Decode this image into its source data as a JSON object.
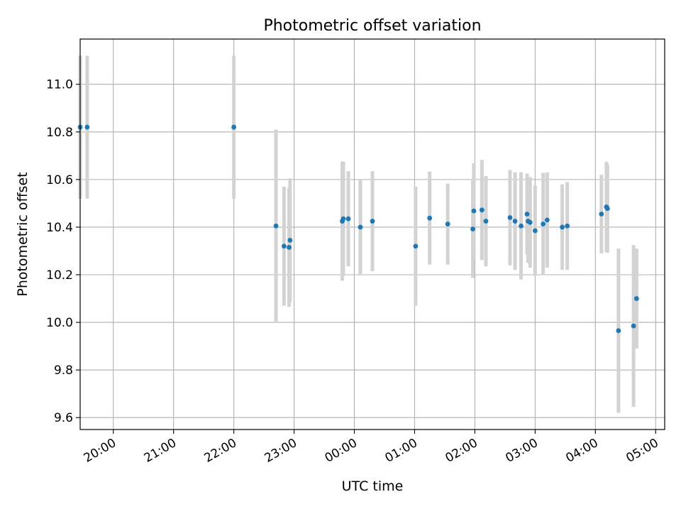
{
  "chart_data": {
    "type": "scatter",
    "title": "Photometric offset variation",
    "xlabel": "UTC time",
    "ylabel": "Photometric offset",
    "x_tick_labels": [
      "20:00",
      "21:00",
      "22:00",
      "23:00",
      "00:00",
      "01:00",
      "02:00",
      "03:00",
      "04:00",
      "05:00"
    ],
    "y_ticks": [
      9.6,
      9.8,
      10.0,
      10.2,
      10.4,
      10.6,
      10.8,
      11.0
    ],
    "xlim": [
      "19:27",
      "05:09"
    ],
    "ylim": [
      9.55,
      11.19
    ],
    "grid": true,
    "point_color": "#1f77b4",
    "errorbar_color": "#d3d3d3",
    "points": [
      {
        "time": "19:27",
        "value": 10.82,
        "error": 0.3
      },
      {
        "time": "19:34",
        "value": 10.82,
        "error": 0.3
      },
      {
        "time": "22:00",
        "value": 10.82,
        "error": 0.3
      },
      {
        "time": "22:42",
        "value": 10.405,
        "error": 0.405
      },
      {
        "time": "22:50",
        "value": 10.32,
        "error": 0.25
      },
      {
        "time": "22:55",
        "value": 10.315,
        "error": 0.25
      },
      {
        "time": "22:56",
        "value": 10.345,
        "error": 0.26
      },
      {
        "time": "23:48",
        "value": 10.425,
        "error": 0.25
      },
      {
        "time": "23:49",
        "value": 10.435,
        "error": 0.24
      },
      {
        "time": "23:54",
        "value": 10.435,
        "error": 0.2
      },
      {
        "time": "00:06",
        "value": 10.4,
        "error": 0.2
      },
      {
        "time": "00:18",
        "value": 10.425,
        "error": 0.21
      },
      {
        "time": "01:01",
        "value": 10.32,
        "error": 0.25
      },
      {
        "time": "01:15",
        "value": 10.438,
        "error": 0.195
      },
      {
        "time": "01:33",
        "value": 10.413,
        "error": 0.17
      },
      {
        "time": "01:58",
        "value": 10.392,
        "error": 0.205
      },
      {
        "time": "01:59",
        "value": 10.468,
        "error": 0.2
      },
      {
        "time": "02:07",
        "value": 10.472,
        "error": 0.21
      },
      {
        "time": "02:11",
        "value": 10.425,
        "error": 0.19
      },
      {
        "time": "02:35",
        "value": 10.44,
        "error": 0.2
      },
      {
        "time": "02:40",
        "value": 10.425,
        "error": 0.205
      },
      {
        "time": "02:46",
        "value": 10.405,
        "error": 0.225
      },
      {
        "time": "02:52",
        "value": 10.455,
        "error": 0.17
      },
      {
        "time": "02:53",
        "value": 10.425,
        "error": 0.175
      },
      {
        "time": "02:55",
        "value": 10.42,
        "error": 0.19
      },
      {
        "time": "03:00",
        "value": 10.385,
        "error": 0.19
      },
      {
        "time": "03:08",
        "value": 10.413,
        "error": 0.215
      },
      {
        "time": "03:12",
        "value": 10.43,
        "error": 0.2
      },
      {
        "time": "03:27",
        "value": 10.4,
        "error": 0.18
      },
      {
        "time": "03:32",
        "value": 10.405,
        "error": 0.185
      },
      {
        "time": "04:06",
        "value": 10.455,
        "error": 0.165
      },
      {
        "time": "04:11",
        "value": 10.485,
        "error": 0.19
      },
      {
        "time": "04:12",
        "value": 10.478,
        "error": 0.185
      },
      {
        "time": "04:23",
        "value": 9.965,
        "error": 0.345
      },
      {
        "time": "04:38",
        "value": 9.985,
        "error": 0.34
      },
      {
        "time": "04:41",
        "value": 10.1,
        "error": 0.21
      }
    ]
  }
}
